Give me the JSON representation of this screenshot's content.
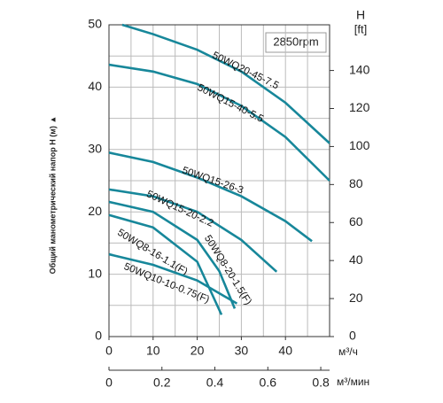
{
  "chart_data": {
    "type": "line",
    "y_label": "Общий манометрический напор H (м) ▲",
    "annotation": "2850rpm",
    "y2_label": "H",
    "y2_unit": "[ft]",
    "x_unit": "м³/ч",
    "x2_unit": "м³/мин",
    "xlim": [
      0,
      50
    ],
    "xticks": [
      0,
      10,
      20,
      30,
      40
    ],
    "x_minor_ticks": [
      5,
      15,
      25,
      35,
      45,
      50
    ],
    "x2lim": [
      0,
      0.8333
    ],
    "x2ticks": [
      0,
      0.2,
      0.4,
      0.6,
      0.8
    ],
    "ylim": [
      0,
      50
    ],
    "yticks": [
      0,
      10,
      20,
      30,
      40,
      50
    ],
    "y_minor_ticks": [
      5,
      15,
      25,
      35,
      45
    ],
    "y2lim": [
      0,
      164.04
    ],
    "y2ticks": [
      0,
      20,
      40,
      60,
      80,
      100,
      120,
      140
    ],
    "grid": true,
    "series": [
      {
        "name": "50WQ20-45-7.5",
        "color": "#17879a",
        "x": [
          3,
          10,
          20,
          30,
          40,
          50
        ],
        "values": [
          50,
          48.5,
          46,
          42.5,
          37.5,
          31
        ]
      },
      {
        "name": "50WQ15-40-5.5",
        "color": "#17879a",
        "x": [
          0,
          10,
          20,
          30,
          40,
          50
        ],
        "values": [
          43.6,
          42.5,
          40.5,
          37,
          32,
          25
        ]
      },
      {
        "name": "50WQ15-26-3",
        "color": "#17879a",
        "x": [
          0,
          10,
          20,
          30,
          40,
          46
        ],
        "values": [
          29.5,
          28,
          25.5,
          22.5,
          18.5,
          15.3
        ]
      },
      {
        "name": "50WQ15-20-2.2",
        "color": "#17879a",
        "x": [
          0,
          10,
          20,
          30,
          38
        ],
        "values": [
          23.6,
          22.5,
          20,
          15.5,
          10.4
        ]
      },
      {
        "name": "50WQ8-20-1.5(F)",
        "color": "#17879a",
        "x": [
          0,
          10,
          20,
          25,
          28.5
        ],
        "values": [
          21.6,
          20,
          15.5,
          10.5,
          4.5
        ]
      },
      {
        "name": "50WQ8-16-1.1(F)",
        "color": "#17879a",
        "x": [
          0,
          10,
          20,
          25.5
        ],
        "values": [
          19.5,
          17.5,
          12,
          3.5
        ]
      },
      {
        "name": "50WQ10-10-0.75(F)",
        "color": "#17879a",
        "x": [
          0,
          10,
          20,
          29
        ],
        "values": [
          13.2,
          11.5,
          9,
          5.3
        ]
      }
    ]
  }
}
